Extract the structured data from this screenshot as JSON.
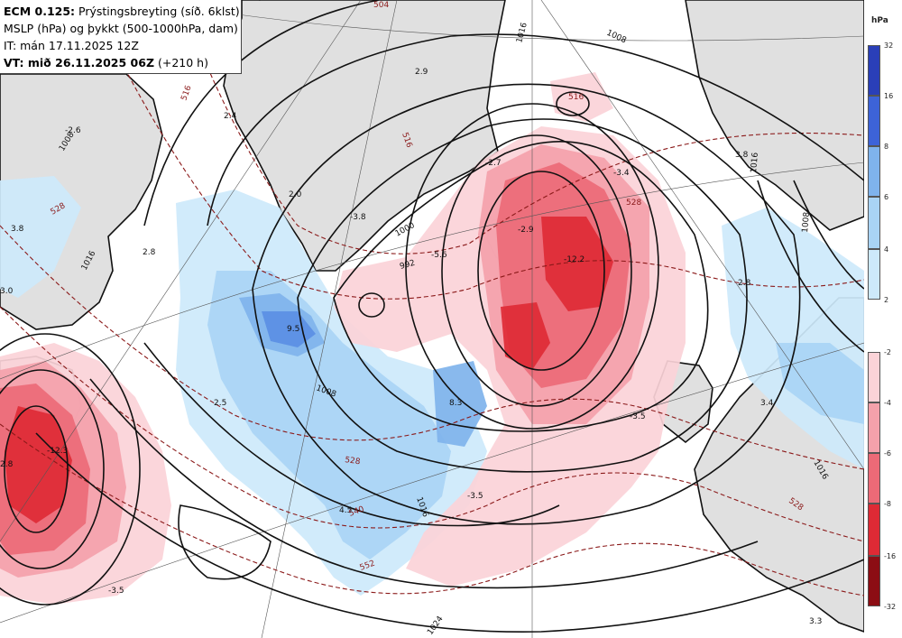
{
  "title": {
    "model_bold": "ECM 0.125:",
    "product": " Prýstingsbreyting (síð. 6klst)",
    "line2": "MSLP (hPa) og þykkt (500-1000hPa, dam)",
    "line3": "IT: mán 17.11.2025 12Z",
    "vt_bold": "VT: mið 26.11.2025 06Z",
    "vt_lead": " (+210 h)"
  },
  "legend": {
    "unit": "hPa",
    "blue_ticks": [
      "32",
      "16",
      "8",
      "6",
      "4",
      "2"
    ],
    "red_ticks": [
      "-2",
      "-4",
      "-6",
      "-8",
      "-16",
      "-32"
    ]
  },
  "colors": {
    "land": "#e0e0e0",
    "sea": "#ffffff",
    "isobar": "#111111",
    "thickness": "#8b1a1a",
    "blue_2": "#cde9fb",
    "blue_4": "#a9d4f5",
    "blue_6": "#7fb3ec",
    "blue_8": "#5b8fe4",
    "blue_16": "#3d63d8",
    "blue_32": "#2a3fb8",
    "red_2": "#fbd3d8",
    "red_4": "#f4a1ab",
    "red_6": "#ec6a77",
    "red_8": "#de2a35",
    "red_16": "#b5141d",
    "red_32": "#8c0d14"
  },
  "labels": {
    "isobars": [
      "1008",
      "1016",
      "1016",
      "1008",
      "1000",
      "992",
      "1008",
      "1016",
      "1024",
      "1016",
      "1008",
      "1016",
      "1016"
    ],
    "thickness": [
      "504",
      "516",
      "516",
      "528",
      "528",
      "528",
      "540",
      "552",
      "528",
      "516"
    ],
    "tendency": [
      "-2.6",
      "2.4",
      "2.9",
      "3.8",
      "2.8",
      "3.0",
      "2.0",
      "-3.8",
      "-2.7",
      "-3.4",
      "3.8",
      "-2.9",
      "-5.6",
      "-12.2",
      "9.5",
      "2.5",
      "8.3",
      "-12.3",
      "2.8",
      "4.5",
      "-3.5",
      "-3.5",
      "-3.5",
      "2.8",
      "3.4",
      "3.3"
    ]
  }
}
